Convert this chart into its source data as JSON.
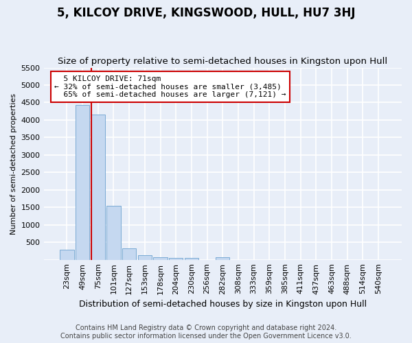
{
  "title": "5, KILCOY DRIVE, KINGSWOOD, HULL, HU7 3HJ",
  "subtitle": "Size of property relative to semi-detached houses in Kingston upon Hull",
  "xlabel": "Distribution of semi-detached houses by size in Kingston upon Hull",
  "ylabel": "Number of semi-detached properties",
  "footer_line1": "Contains HM Land Registry data © Crown copyright and database right 2024.",
  "footer_line2": "Contains public sector information licensed under the Open Government Licence v3.0.",
  "bar_categories": [
    "23sqm",
    "49sqm",
    "75sqm",
    "101sqm",
    "127sqm",
    "153sqm",
    "178sqm",
    "204sqm",
    "230sqm",
    "256sqm",
    "282sqm",
    "308sqm",
    "333sqm",
    "359sqm",
    "385sqm",
    "411sqm",
    "437sqm",
    "463sqm",
    "488sqm",
    "514sqm",
    "540sqm"
  ],
  "bar_values": [
    280,
    4430,
    4160,
    1540,
    320,
    130,
    75,
    60,
    60,
    0,
    65,
    0,
    0,
    0,
    0,
    0,
    0,
    0,
    0,
    0,
    0
  ],
  "bar_color": "#c5d8f0",
  "bar_edge_color": "#7aaad4",
  "property_label": "5 KILCOY DRIVE: 71sqm",
  "pct_smaller": 32,
  "n_smaller": 3485,
  "pct_larger": 65,
  "n_larger": 7121,
  "vline_color": "#cc0000",
  "annotation_box_color": "#cc0000",
  "ylim": [
    0,
    5500
  ],
  "yticks": [
    0,
    500,
    1000,
    1500,
    2000,
    2500,
    3000,
    3500,
    4000,
    4500,
    5000,
    5500
  ],
  "fig_bg_color": "#e8eef8",
  "ax_bg_color": "#e8eef8",
  "grid_color": "#ffffff",
  "title_fontsize": 12,
  "subtitle_fontsize": 9.5,
  "xlabel_fontsize": 9,
  "ylabel_fontsize": 8,
  "tick_fontsize": 8,
  "annot_fontsize": 8,
  "footer_fontsize": 7
}
